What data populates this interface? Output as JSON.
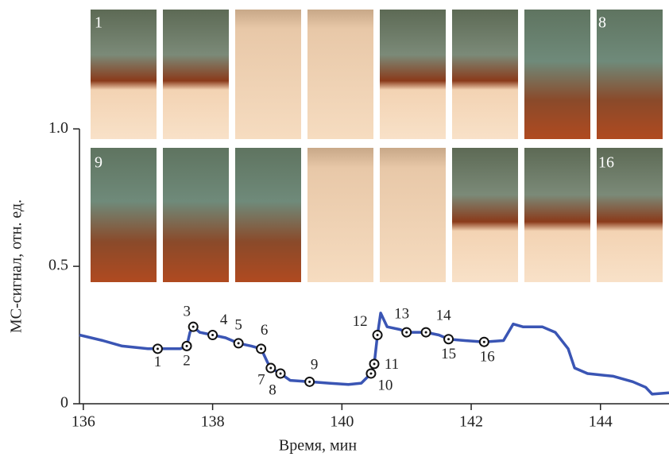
{
  "chart_data": {
    "type": "line",
    "x_label": "Время, мин",
    "y_label": "МС-сигнал, отн. ед.",
    "xlim": [
      135.94,
      145.06
    ],
    "xticks": [
      136,
      138,
      140,
      142,
      144
    ],
    "ylim": [
      0,
      1.44
    ],
    "yticks": [
      0,
      0.5,
      {
        "value": 1,
        "label": "1.0"
      }
    ],
    "photo_labels": [
      "1",
      "8",
      "9",
      "16"
    ],
    "series": [
      {
        "color": "#3a55b4",
        "x": [
          135.94,
          136.3,
          136.6,
          137.0,
          137.15,
          137.5,
          137.6,
          137.65,
          137.7,
          137.8,
          138.0,
          138.2,
          138.4,
          138.6,
          138.75,
          138.85,
          138.9,
          139.05,
          139.2,
          139.5,
          139.8,
          140.1,
          140.3,
          140.45,
          140.5,
          140.55,
          140.6,
          140.7,
          140.9,
          141.0,
          141.3,
          141.5,
          141.65,
          141.9,
          142.2,
          142.5,
          142.65,
          142.8,
          143.1,
          143.3,
          143.5,
          143.6,
          143.8,
          144.2,
          144.5,
          144.7,
          144.8,
          145.06
        ],
        "values": [
          0.25,
          0.23,
          0.21,
          0.2,
          0.2,
          0.2,
          0.21,
          0.26,
          0.28,
          0.26,
          0.25,
          0.24,
          0.22,
          0.21,
          0.2,
          0.15,
          0.13,
          0.11,
          0.085,
          0.08,
          0.075,
          0.07,
          0.075,
          0.11,
          0.145,
          0.25,
          0.33,
          0.28,
          0.27,
          0.26,
          0.26,
          0.25,
          0.235,
          0.23,
          0.225,
          0.23,
          0.29,
          0.28,
          0.28,
          0.26,
          0.2,
          0.13,
          0.11,
          0.1,
          0.08,
          0.06,
          0.035,
          0.04
        ]
      },
      {
        "color": "#111111",
        "labels": [
          "1",
          "2",
          "3",
          "4",
          "5",
          "6",
          "7",
          "8",
          "9",
          "10",
          "11",
          "12",
          "13",
          "14",
          "15",
          "16"
        ],
        "x": [
          137.15,
          137.6,
          137.7,
          138.0,
          138.4,
          138.75,
          138.9,
          139.05,
          139.5,
          140.45,
          140.5,
          140.55,
          141.0,
          141.3,
          141.65,
          142.2
        ],
        "values": [
          0.2,
          0.21,
          0.28,
          0.25,
          0.22,
          0.2,
          0.13,
          0.11,
          0.08,
          0.11,
          0.145,
          0.25,
          0.26,
          0.26,
          0.235,
          0.225
        ]
      }
    ]
  }
}
